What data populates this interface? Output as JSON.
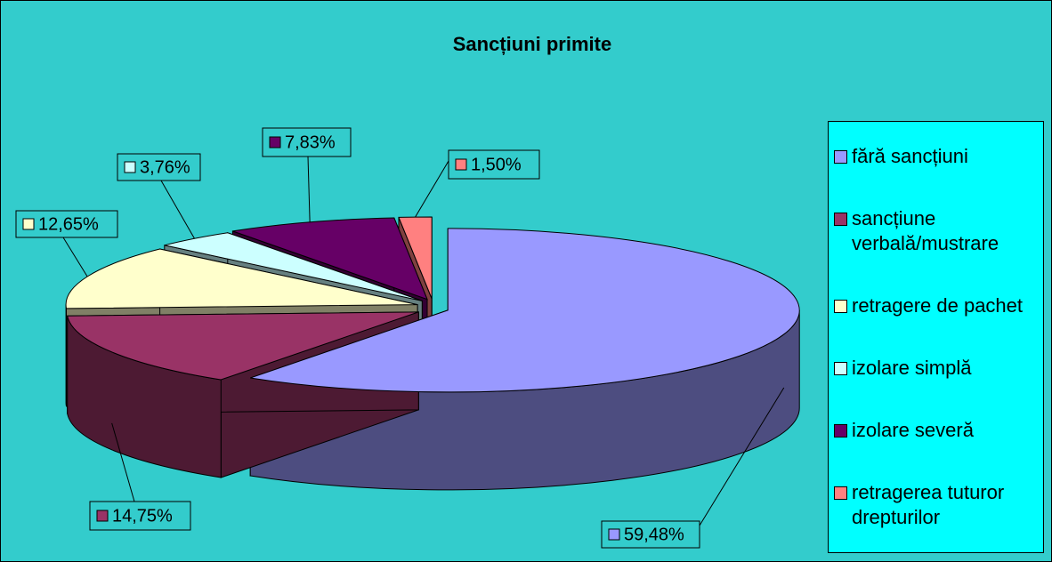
{
  "chart_data": {
    "type": "pie3d",
    "title": "Sancțiuni primite",
    "categories": [
      "fără sancțiuni",
      "sancțiune verbală/mustrare",
      "retragere de pachet",
      "izolare simplă",
      "izolare severă",
      "retragerea tuturor drepturilor"
    ],
    "values": [
      59.48,
      14.75,
      12.65,
      3.76,
      7.83,
      1.5
    ],
    "value_labels": [
      "59,48%",
      "14,75%",
      "12,65%",
      "3,76%",
      "7,83%",
      "1,50%"
    ],
    "colors": [
      "#9999ff",
      "#993366",
      "#ffffcc",
      "#ccffff",
      "#660066",
      "#ff8080"
    ],
    "legend": "right"
  }
}
